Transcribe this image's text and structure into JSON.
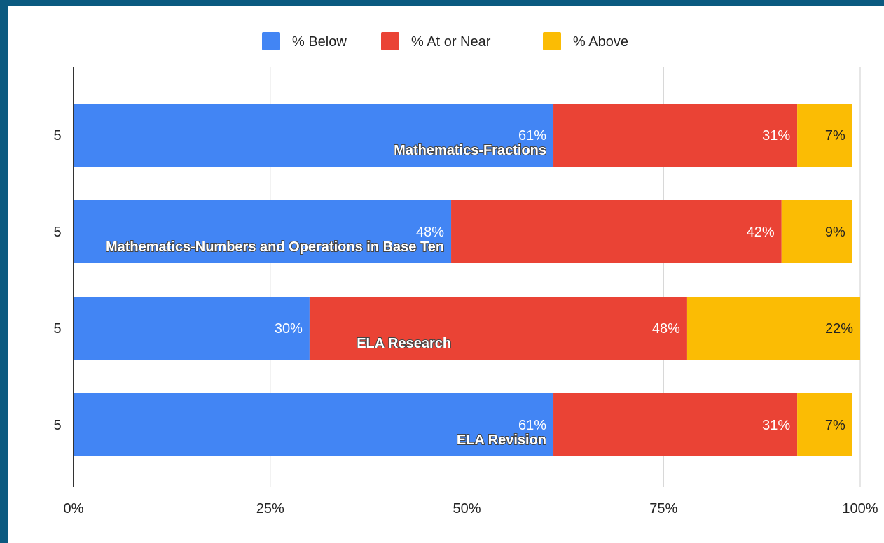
{
  "chart_data": {
    "type": "bar",
    "orientation": "horizontal",
    "stacked": "percent",
    "categories": [
      "5",
      "5",
      "5",
      "5"
    ],
    "row_names": [
      "Mathematics-Fractions",
      "Mathematics-Numbers and Operations in Base Ten",
      "ELA Research",
      "ELA Revision"
    ],
    "series": [
      {
        "name": "% Below",
        "color": "#4285f4",
        "values": [
          61,
          48,
          30,
          61
        ],
        "label_color": "#ffffff"
      },
      {
        "name": "% At or Near",
        "color": "#ea4335",
        "values": [
          31,
          42,
          48,
          31
        ],
        "label_color": "#ffffff"
      },
      {
        "name": "% Above",
        "color": "#fbbc04",
        "values": [
          7,
          9,
          22,
          7
        ],
        "label_color": "#222222"
      }
    ],
    "x_ticks": [
      "0%",
      "25%",
      "50%",
      "75%",
      "100%"
    ],
    "xlim": [
      0,
      100
    ],
    "grid": true,
    "legend_position": "top"
  }
}
